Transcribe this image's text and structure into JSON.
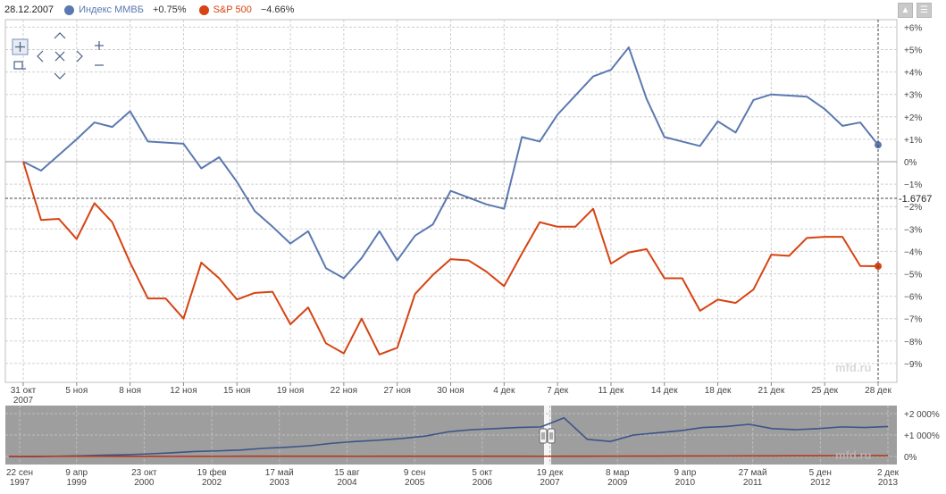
{
  "legend": {
    "date": "28.12.2007",
    "series": [
      {
        "name": "Индекс ММВБ",
        "change": "+0.75%",
        "color": "#5b79b0"
      },
      {
        "name": "S&P 500",
        "change": "−4.66%",
        "color": "#d74312"
      }
    ]
  },
  "toolbar_icons": [
    "pin-icon",
    "menu-icon"
  ],
  "nav_icons": [
    "move-icon",
    "zoom-in-icon",
    "reset-zoom-icon",
    "zoom-out-icon",
    "arrow-up-icon",
    "arrow-left-icon",
    "arrow-right-icon",
    "arrow-down-icon"
  ],
  "crosshair_label": "-1.6767",
  "watermark": "mfd.ru",
  "chart_data": [
    {
      "type": "line",
      "y_unit": "%",
      "ylim": [
        -10,
        6
      ],
      "yticks": [
        "+6%",
        "+5%",
        "+4%",
        "+3%",
        "+2%",
        "+1%",
        "0%",
        "−1%",
        "−2%",
        "−3%",
        "−4%",
        "−5%",
        "−6%",
        "−7%",
        "−8%",
        "−9%"
      ],
      "grid": true,
      "xticks": [
        "31 окт\n2007",
        "5 ноя",
        "8 ноя",
        "12 ноя",
        "15 ноя",
        "19 ноя",
        "22 ноя",
        "27 ноя",
        "30 ноя",
        "4 дек",
        "7 дек",
        "11 дек",
        "14 дек",
        "18 дек",
        "21 дек",
        "25 дек",
        "28 дек"
      ],
      "series": [
        {
          "name": "Индекс ММВБ",
          "color": "#5b79b0",
          "values": [
            0,
            -0.4,
            0.3,
            1.0,
            1.75,
            1.55,
            2.25,
            0.9,
            0.85,
            0.8,
            -0.3,
            0.2,
            -0.9,
            -2.2,
            -2.9,
            -3.65,
            -3.1,
            -4.75,
            -5.2,
            -4.3,
            -3.1,
            -4.4,
            -3.3,
            -2.8,
            -1.3,
            -1.6,
            -1.9,
            -2.1,
            1.1,
            0.9,
            2.1,
            2.95,
            3.8,
            4.1,
            5.1,
            2.8,
            1.1,
            0.9,
            0.7,
            1.8,
            1.3,
            2.75,
            3.0,
            2.95,
            2.9,
            2.35,
            1.6,
            1.75,
            0.75
          ]
        },
        {
          "name": "S&P 500",
          "color": "#d74312",
          "values": [
            0,
            -2.6,
            -2.55,
            -3.45,
            -1.85,
            -2.7,
            -4.5,
            -6.1,
            -6.1,
            -7.0,
            -4.5,
            -5.2,
            -6.15,
            -5.85,
            -5.8,
            -7.25,
            -6.5,
            -8.1,
            -8.55,
            -7.0,
            -8.6,
            -8.3,
            -5.9,
            -5.05,
            -4.35,
            -4.4,
            -4.9,
            -5.55,
            -4.1,
            -2.7,
            -2.9,
            -2.9,
            -2.1,
            -4.55,
            -4.05,
            -3.9,
            -5.2,
            -5.2,
            -6.65,
            -6.15,
            -6.3,
            -5.7,
            -4.15,
            -4.2,
            -3.4,
            -3.35,
            -3.35,
            -4.65,
            -4.66
          ]
        }
      ]
    },
    {
      "type": "line",
      "title": "",
      "y_unit": "%",
      "ylim": [
        -300,
        2300
      ],
      "yticks": [
        "+2 000%",
        "+1 000%",
        "0%"
      ],
      "xticks": [
        "22 сен\n1997",
        "9 апр\n1999",
        "23 окт\n2000",
        "19 фев\n2002",
        "17 май\n2003",
        "15 авг\n2004",
        "9 сен\n2005",
        "5 окт\n2006",
        "19 дек\n2007",
        "8 мар\n2009",
        "9 апр\n2010",
        "27 май\n2011",
        "5 ден\n2012",
        "2 дек\n2013"
      ],
      "series": [
        {
          "name": "Индекс ММВБ",
          "color": "#3c5488",
          "values": [
            0,
            -10,
            10,
            30,
            60,
            80,
            120,
            170,
            230,
            260,
            300,
            380,
            430,
            500,
            620,
            700,
            760,
            840,
            950,
            1150,
            1250,
            1300,
            1350,
            1380,
            1800,
            800,
            700,
            1000,
            1100,
            1200,
            1350,
            1400,
            1500,
            1300,
            1250,
            1300,
            1380,
            1350,
            1400
          ]
        },
        {
          "name": "S&P 500",
          "color": "#b5371a",
          "values": [
            0,
            5,
            10,
            12,
            10,
            8,
            6,
            5,
            8,
            10,
            12,
            14,
            15,
            14,
            12,
            10,
            11,
            12,
            13,
            14,
            15,
            14,
            12,
            10,
            12,
            14,
            16,
            18,
            20,
            22,
            24,
            26,
            28,
            30,
            32,
            34,
            36,
            38,
            40
          ]
        }
      ]
    }
  ]
}
